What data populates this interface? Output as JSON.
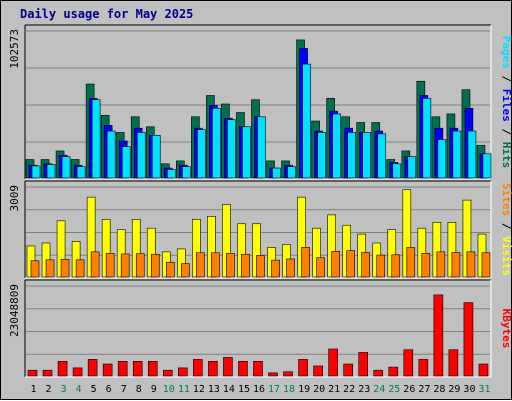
{
  "title": "Daily usage for May 2025",
  "colors": {
    "hits": "#007050",
    "files": "#0000ff",
    "pages": "#00e0ff",
    "visits": "#ffff00",
    "sites": "#ff8000",
    "kbytes": "#ff0000",
    "weekend_label": "#008040",
    "weekday_label": "#000000",
    "panel_bg": "#c0c0c0",
    "grid": "#808080"
  },
  "chart_data": [
    {
      "type": "bar",
      "panel": "hits_files_pages",
      "y_max_label": "102573",
      "ylim": [
        0,
        102573
      ],
      "right_label_parts": [
        {
          "text": "Pages",
          "color": "#00e0ff"
        },
        {
          "text": " / ",
          "color": "#000000"
        },
        {
          "text": "Files",
          "color": "#0000ff"
        },
        {
          "text": " / ",
          "color": "#000000"
        },
        {
          "text": "Hits",
          "color": "#007050"
        }
      ],
      "categories": [
        "1",
        "2",
        "3",
        "4",
        "5",
        "6",
        "7",
        "8",
        "9",
        "10",
        "11",
        "12",
        "13",
        "14",
        "15",
        "16",
        "17",
        "18",
        "19",
        "20",
        "21",
        "22",
        "23",
        "24",
        "25",
        "26",
        "27",
        "28",
        "29",
        "30",
        "31"
      ],
      "series": [
        {
          "name": "Hits",
          "values": [
            13000,
            13000,
            19000,
            13000,
            66000,
            44000,
            32000,
            43000,
            36000,
            10000,
            12000,
            43000,
            58000,
            52000,
            46000,
            55000,
            12000,
            12000,
            97000,
            40000,
            56000,
            43000,
            39000,
            39000,
            13000,
            19000,
            68000,
            43000,
            45000,
            62000,
            23000
          ]
        },
        {
          "name": "Files",
          "values": [
            9000,
            10000,
            16000,
            9000,
            56000,
            37000,
            26000,
            35000,
            30000,
            7000,
            9000,
            35000,
            51000,
            42000,
            36000,
            43000,
            7000,
            9000,
            91000,
            33000,
            47000,
            35000,
            32000,
            33000,
            11000,
            15000,
            58000,
            35000,
            35000,
            49000,
            17000
          ]
        },
        {
          "name": "Pages",
          "values": [
            8500,
            9500,
            15000,
            8000,
            55000,
            33000,
            22000,
            32000,
            30000,
            6000,
            8000,
            34000,
            49000,
            41000,
            36000,
            43000,
            7000,
            8000,
            80000,
            32000,
            45000,
            32000,
            32000,
            31000,
            10000,
            15000,
            56000,
            27000,
            33000,
            33000,
            17000
          ]
        }
      ]
    },
    {
      "type": "bar",
      "panel": "visits_sites",
      "y_max_label": "3009",
      "ylim": [
        0,
        3009
      ],
      "right_label_parts": [
        {
          "text": "Sites",
          "color": "#ff8000"
        },
        {
          "text": " / ",
          "color": "#000000"
        },
        {
          "text": "Visits",
          "color": "#ffff00"
        }
      ],
      "categories": [
        "1",
        "2",
        "3",
        "4",
        "5",
        "6",
        "7",
        "8",
        "9",
        "10",
        "11",
        "12",
        "13",
        "14",
        "15",
        "16",
        "17",
        "18",
        "19",
        "20",
        "21",
        "22",
        "23",
        "24",
        "25",
        "26",
        "27",
        "28",
        "29",
        "30",
        "31"
      ],
      "series": [
        {
          "name": "Visits",
          "values": [
            1050,
            1150,
            1900,
            1200,
            2700,
            1950,
            1600,
            1950,
            1650,
            850,
            950,
            1950,
            2050,
            2450,
            1800,
            1800,
            1000,
            1100,
            2700,
            1650,
            2100,
            1750,
            1450,
            1150,
            1600,
            2950,
            1650,
            1850,
            1850,
            2600,
            1450
          ]
        },
        {
          "name": "Sites",
          "values": [
            550,
            580,
            600,
            580,
            850,
            800,
            780,
            790,
            770,
            500,
            450,
            820,
            820,
            800,
            770,
            730,
            570,
            610,
            1000,
            650,
            870,
            890,
            830,
            740,
            750,
            1000,
            800,
            850,
            830,
            850,
            820
          ]
        }
      ]
    },
    {
      "type": "bar",
      "panel": "kbytes",
      "y_max_label": "23048809",
      "ylim": [
        0,
        23048809
      ],
      "right_label_parts": [
        {
          "text": "KBytes",
          "color": "#ff0000"
        }
      ],
      "categories": [
        "1",
        "2",
        "3",
        "4",
        "5",
        "6",
        "7",
        "8",
        "9",
        "10",
        "11",
        "12",
        "13",
        "14",
        "15",
        "16",
        "17",
        "18",
        "19",
        "20",
        "21",
        "22",
        "23",
        "24",
        "25",
        "26",
        "27",
        "28",
        "29",
        "30",
        "31"
      ],
      "series": [
        {
          "name": "KBytes",
          "values": [
            1500000,
            1500000,
            3800000,
            2100000,
            4300000,
            3100000,
            3800000,
            3800000,
            3800000,
            1500000,
            2100000,
            4300000,
            3800000,
            4800000,
            3800000,
            3800000,
            800000,
            1100000,
            4300000,
            2600000,
            7000000,
            3100000,
            6100000,
            1500000,
            2300000,
            6800000,
            4300000,
            21000000,
            6800000,
            19000000,
            3100000
          ]
        }
      ]
    }
  ],
  "x_labels": [
    {
      "text": "1",
      "weekend": false
    },
    {
      "text": "2",
      "weekend": false
    },
    {
      "text": "3",
      "weekend": true
    },
    {
      "text": "4",
      "weekend": true
    },
    {
      "text": "5",
      "weekend": false
    },
    {
      "text": "6",
      "weekend": false
    },
    {
      "text": "7",
      "weekend": false
    },
    {
      "text": "8",
      "weekend": false
    },
    {
      "text": "9",
      "weekend": false
    },
    {
      "text": "10",
      "weekend": true
    },
    {
      "text": "11",
      "weekend": true
    },
    {
      "text": "12",
      "weekend": false
    },
    {
      "text": "13",
      "weekend": false
    },
    {
      "text": "14",
      "weekend": false
    },
    {
      "text": "15",
      "weekend": false
    },
    {
      "text": "16",
      "weekend": false
    },
    {
      "text": "17",
      "weekend": true
    },
    {
      "text": "18",
      "weekend": true
    },
    {
      "text": "19",
      "weekend": false
    },
    {
      "text": "20",
      "weekend": false
    },
    {
      "text": "21",
      "weekend": false
    },
    {
      "text": "22",
      "weekend": false
    },
    {
      "text": "23",
      "weekend": false
    },
    {
      "text": "24",
      "weekend": true
    },
    {
      "text": "25",
      "weekend": true
    },
    {
      "text": "26",
      "weekend": false
    },
    {
      "text": "27",
      "weekend": false
    },
    {
      "text": "28",
      "weekend": false
    },
    {
      "text": "29",
      "weekend": false
    },
    {
      "text": "30",
      "weekend": false
    },
    {
      "text": "31",
      "weekend": true
    }
  ]
}
